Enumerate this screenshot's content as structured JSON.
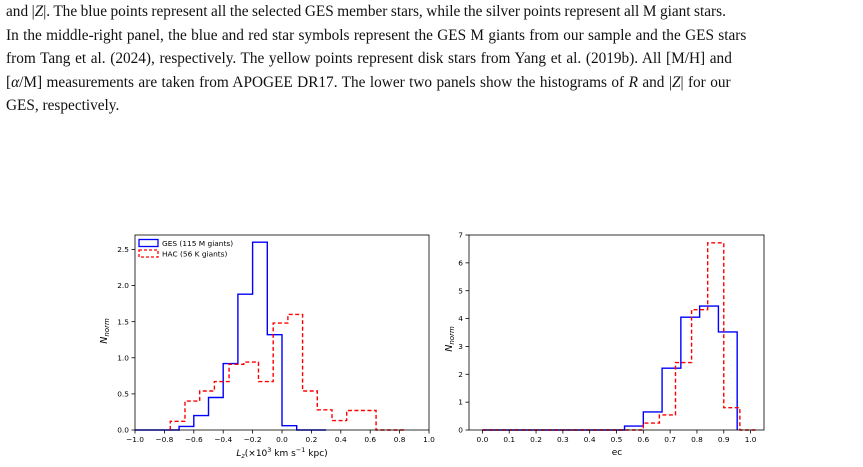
{
  "caption": {
    "lines": [
      "and |Z|. The blue points represent all the selected GES member stars, while the silver points represent all M giant stars.",
      "In the middle-right panel, the blue and red star symbols represent the GES M giants from our sample and the GES stars",
      "from Tang et al. (2024), respectively. The yellow points represent disk stars from Yang et al. (2019b). All [M/H] and",
      "[α/M] measurements are taken from APOGEE DR17. The lower two panels show the histograms of R and |Z| for our",
      "GES, respectively."
    ]
  },
  "chart_data": [
    {
      "type": "histogram",
      "xlabel": "L_z(×10^3 km s^-1 kpc)",
      "ylabel": "N_norm",
      "xlim": [
        -1.0,
        1.0
      ],
      "ylim": [
        0.0,
        2.7
      ],
      "xticks": [
        "−1.0",
        "−0.8",
        "−0.6",
        "−0.4",
        "−0.2",
        "0.0",
        "0.2",
        "0.4",
        "0.6",
        "0.8",
        "1.0"
      ],
      "xtick_values": [
        -1.0,
        -0.8,
        -0.6,
        -0.4,
        -0.2,
        0.0,
        0.2,
        0.4,
        0.6,
        0.8,
        1.0
      ],
      "yticks": [
        "0.0",
        "0.5",
        "1.0",
        "1.5",
        "2.0",
        "2.5"
      ],
      "ytick_values": [
        0.0,
        0.5,
        1.0,
        1.5,
        2.0,
        2.5
      ],
      "legend_position": "upper-left",
      "series": [
        {
          "name": "GES (115 M giants)",
          "color": "#0000ff",
          "style": "solid",
          "edges": [
            -1.0,
            -0.9,
            -0.8,
            -0.7,
            -0.6,
            -0.5,
            -0.4,
            -0.3,
            -0.2,
            -0.1,
            0.0,
            0.1,
            0.2,
            0.3
          ],
          "values": [
            0.0,
            0.0,
            0.0,
            0.05,
            0.2,
            0.45,
            0.92,
            1.88,
            2.6,
            1.32,
            0.06,
            0.0,
            0.0
          ]
        },
        {
          "name": "HAC (56 K giants)",
          "color": "#ff0000",
          "style": "dashed",
          "edges": [
            -0.76,
            -0.66,
            -0.56,
            -0.46,
            -0.36,
            -0.26,
            -0.16,
            -0.06,
            0.04,
            0.14,
            0.24,
            0.34,
            0.44,
            0.54,
            0.64,
            0.74,
            0.84
          ],
          "values": [
            0.12,
            0.4,
            0.54,
            0.67,
            0.91,
            0.94,
            0.67,
            1.48,
            1.6,
            0.54,
            0.28,
            0.13,
            0.27,
            0.27,
            0.0,
            0.0
          ]
        }
      ]
    },
    {
      "type": "histogram",
      "xlabel": "ec",
      "ylabel": "N_norm",
      "xlim": [
        -0.05,
        1.05
      ],
      "ylim": [
        0,
        7
      ],
      "xticks": [
        "0.0",
        "0.1",
        "0.2",
        "0.3",
        "0.4",
        "0.5",
        "0.6",
        "0.7",
        "0.8",
        "0.9",
        "1.0"
      ],
      "xtick_values": [
        0.0,
        0.1,
        0.2,
        0.3,
        0.4,
        0.5,
        0.6,
        0.7,
        0.8,
        0.9,
        1.0
      ],
      "yticks": [
        "0",
        "1",
        "2",
        "3",
        "4",
        "5",
        "6",
        "7"
      ],
      "ytick_values": [
        0,
        1,
        2,
        3,
        4,
        5,
        6,
        7
      ],
      "series": [
        {
          "name": "GES (115 M giants)",
          "color": "#0000ff",
          "style": "solid",
          "edges": [
            0.0,
            0.53,
            0.6,
            0.67,
            0.74,
            0.81,
            0.88,
            0.95
          ],
          "values": [
            0.0,
            0.14,
            0.65,
            2.22,
            4.05,
            4.45,
            3.52
          ]
        },
        {
          "name": "HAC (56 K giants)",
          "color": "#ff0000",
          "style": "dashed",
          "edges": [
            0.0,
            0.6,
            0.66,
            0.72,
            0.78,
            0.84,
            0.9,
            0.96,
            1.02
          ],
          "values": [
            0.0,
            0.25,
            0.54,
            2.42,
            4.32,
            6.72,
            0.8,
            0.0
          ]
        }
      ]
    }
  ]
}
